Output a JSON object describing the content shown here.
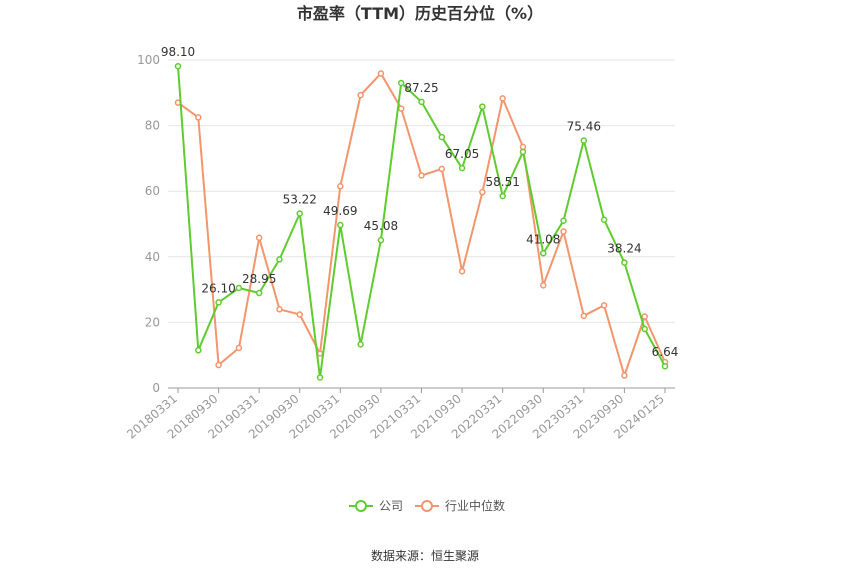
{
  "chart_data": {
    "type": "line",
    "title": "市盈率（TTM）历史百分位（%）",
    "ylim": [
      0,
      100
    ],
    "yticks": [
      0,
      20,
      40,
      60,
      80,
      100
    ],
    "grid": true,
    "legend_position": "bottom",
    "x_tick_labels": [
      "20180331",
      "20180930",
      "20190331",
      "20190930",
      "20200331",
      "20200930",
      "20210331",
      "20210930",
      "20220331",
      "20220930",
      "20230331",
      "20230930",
      "20240125"
    ],
    "x_tick_indices": [
      0,
      2,
      4,
      6,
      8,
      10,
      12,
      14,
      16,
      18,
      20,
      22,
      24
    ],
    "point_count": 25,
    "series": [
      {
        "name": "公司",
        "color": "#5fcc2e",
        "values": [
          98.1,
          11.5,
          26.1,
          30.5,
          28.95,
          39.2,
          53.22,
          3.2,
          49.69,
          13.3,
          45.08,
          93.0,
          87.25,
          76.5,
          67.05,
          85.8,
          58.51,
          72.0,
          41.08,
          51.0,
          75.46,
          51.3,
          38.24,
          18.0,
          6.64
        ],
        "labels": {
          "0": "98.10",
          "2": "26.10",
          "4": "28.95",
          "6": "53.22",
          "8": "49.69",
          "10": "45.08",
          "12": "87.25",
          "14": "67.05",
          "16": "58.51",
          "18": "41.08",
          "20": "75.46",
          "22": "38.24",
          "24": "6.64"
        }
      },
      {
        "name": "行业中位数",
        "color": "#f4956b",
        "values": [
          87.0,
          82.5,
          7.0,
          12.2,
          45.8,
          24.0,
          22.4,
          10.5,
          61.5,
          89.3,
          95.9,
          85.2,
          64.8,
          66.8,
          35.6,
          59.7,
          88.3,
          73.5,
          31.3,
          47.7,
          22.0,
          25.2,
          3.8,
          21.8,
          7.9
        ]
      }
    ]
  },
  "source_text": "数据来源：恒生聚源"
}
